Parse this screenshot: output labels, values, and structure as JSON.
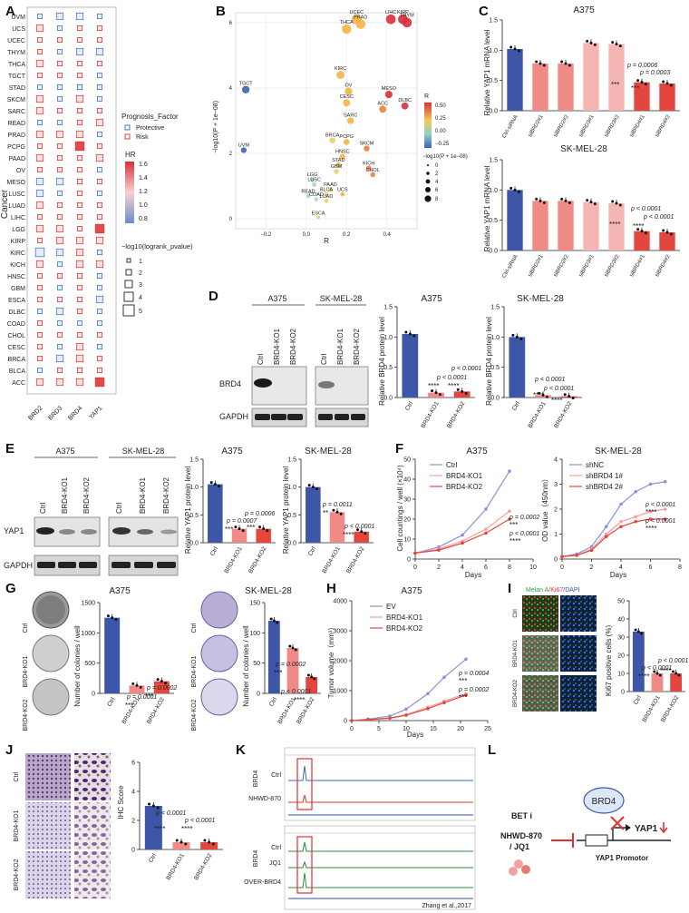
{
  "panels": {
    "A": {
      "label": "A"
    },
    "B": {
      "label": "B"
    },
    "C": {
      "label": "C"
    },
    "D": {
      "label": "D"
    },
    "E": {
      "label": "E"
    },
    "F": {
      "label": "F"
    },
    "G": {
      "label": "G"
    },
    "H": {
      "label": "H"
    },
    "I": {
      "label": "I"
    },
    "J": {
      "label": "J"
    },
    "K": {
      "label": "K"
    },
    "L": {
      "label": "L"
    }
  },
  "panelA": {
    "ylabel": "Cancer",
    "genes": [
      "BRD2",
      "BRD3",
      "BRD4",
      "YAP1"
    ],
    "cancers": [
      "UVM",
      "UCS",
      "UCEC",
      "THYM",
      "THCA",
      "TGCT",
      "STAD",
      "SKCM",
      "SARC",
      "READ",
      "PRAD",
      "PCPG",
      "PAAD",
      "OV",
      "MESO",
      "LUSC",
      "LUAD",
      "LIHC",
      "LGG",
      "KIRP",
      "KIRC",
      "KICH",
      "HNSC",
      "GBM",
      "ESCA",
      "DLBC",
      "COAD",
      "CHOL",
      "CESC",
      "BRCA",
      "BLCA",
      "ACC"
    ],
    "legend_factor_title": "Prognosis_Factor",
    "legend_factor_items": [
      "Protective",
      "Risk"
    ],
    "legend_hr_title": "HR",
    "legend_hr_ticks": [
      "1.6",
      "1.4",
      "1.2",
      "1.0",
      "0.8"
    ],
    "legend_size_title": "−log10(logrank_pvalue)",
    "legend_size_items": [
      "1",
      "2",
      "3",
      "4",
      "5"
    ]
  },
  "panelB": {
    "xlabel": "R",
    "ylabel": "−log10(P + 1e−08)",
    "xticks": [
      "−0.2",
      "0.0",
      "0.2",
      "0.4"
    ],
    "yticks": [
      "0",
      "2",
      "4",
      "6"
    ],
    "legend_r_title": "R",
    "legend_r_ticks": [
      "0.50",
      "0.25",
      "0.00",
      "−0.25"
    ],
    "legend_size_title": "−log10(P + 1e−08)",
    "legend_size_items": [
      "0",
      "2",
      "4",
      "6",
      "8"
    ],
    "points": [
      {
        "n": "UCEC",
        "x": 0.25,
        "y": 6.1
      },
      {
        "n": "PRAD",
        "x": 0.27,
        "y": 5.95
      },
      {
        "n": "THCA",
        "x": 0.2,
        "y": 5.8
      },
      {
        "n": "LIHC",
        "x": 0.42,
        "y": 6.1
      },
      {
        "n": "KIRP",
        "x": 0.48,
        "y": 6.1
      },
      {
        "n": "THYM",
        "x": 0.5,
        "y": 6.0
      },
      {
        "n": "TGCT",
        "x": -0.3,
        "y": 3.95
      },
      {
        "n": "KIRC",
        "x": 0.17,
        "y": 4.4
      },
      {
        "n": "OV",
        "x": 0.21,
        "y": 3.9
      },
      {
        "n": "MESO",
        "x": 0.41,
        "y": 3.8
      },
      {
        "n": "CESC",
        "x": 0.2,
        "y": 3.55
      },
      {
        "n": "ACC",
        "x": 0.38,
        "y": 3.35
      },
      {
        "n": "DLBC",
        "x": 0.49,
        "y": 3.45
      },
      {
        "n": "SARC",
        "x": 0.22,
        "y": 3.0
      },
      {
        "n": "BRCA",
        "x": 0.13,
        "y": 2.4
      },
      {
        "n": "PCPG",
        "x": 0.2,
        "y": 2.35
      },
      {
        "n": "UVM",
        "x": -0.31,
        "y": 2.1
      },
      {
        "n": "SKCM",
        "x": 0.3,
        "y": 2.15
      },
      {
        "n": "HNSC",
        "x": 0.18,
        "y": 1.9
      },
      {
        "n": "STAD",
        "x": 0.16,
        "y": 1.65
      },
      {
        "n": "KICH",
        "x": 0.31,
        "y": 1.55
      },
      {
        "n": "GBM",
        "x": 0.15,
        "y": 1.45
      },
      {
        "n": "CHOL",
        "x": 0.33,
        "y": 1.35
      },
      {
        "n": "LGG",
        "x": 0.03,
        "y": 1.2
      },
      {
        "n": "LUSC",
        "x": 0.04,
        "y": 1.05
      },
      {
        "n": "PAAD",
        "x": 0.12,
        "y": 0.9
      },
      {
        "n": "UCS",
        "x": 0.18,
        "y": 0.75
      },
      {
        "n": "BLCA",
        "x": 0.1,
        "y": 0.75
      },
      {
        "n": "READ",
        "x": 0.01,
        "y": 0.7
      },
      {
        "n": "COAD",
        "x": 0.05,
        "y": 0.6
      },
      {
        "n": "LUAD",
        "x": 0.1,
        "y": 0.55
      },
      {
        "n": "ESCA",
        "x": 0.06,
        "y": 0.05
      }
    ]
  },
  "panelC": {
    "title_a": "A375",
    "title_b": "SK-MEL-28",
    "ylabel": "Relative YAP1 mRNA level",
    "categories": [
      "Ctrl-siRNA",
      "siBRD2#1",
      "siBRD2#2",
      "siBRD3#1",
      "siBRD3#2",
      "siBRD4#1",
      "siBRD4#2"
    ],
    "yticks": [
      "0.0",
      "0.5",
      "1.0",
      "1.5"
    ],
    "a_values": [
      1.02,
      0.78,
      0.78,
      1.12,
      1.1,
      0.47,
      0.45
    ],
    "b_values": [
      1.0,
      0.82,
      0.82,
      0.8,
      0.78,
      0.32,
      0.3
    ],
    "a_p1": "p = 0.0006",
    "a_p2": "p = 0.0003",
    "b_p1": "p < 0.0001",
    "b_p2": "p < 0.0001",
    "stars_a": "***",
    "stars_b": "****"
  },
  "panelD": {
    "cell1": "A375",
    "cell2": "SK-MEL-28",
    "lanes": [
      "Ctrl",
      "BRD4-KO1",
      "BRD4-KO2"
    ],
    "row1": "BRD4",
    "row2": "GAPDH",
    "chart_title1": "A375",
    "chart_title2": "SK-MEL-28",
    "ylabel": "Relative BRD4 protein level",
    "yticks": [
      "0.0",
      "0.5",
      "1.0",
      "1.5"
    ],
    "values1": [
      1.05,
      0.08,
      0.1
    ],
    "values2": [
      1.0,
      0.04,
      0.02
    ],
    "p1a": "p < 0.0001",
    "p1b": "p < 0.0001",
    "p2a": "p < 0.0001",
    "p2b": "p < 0.0001",
    "stars": "****"
  },
  "panelE": {
    "cell1": "A375",
    "cell2": "SK-MEL-28",
    "lanes": [
      "Ctrl",
      "BRD4-KO1",
      "BRD4-KO2"
    ],
    "row1": "YAP1",
    "row2": "GAPDH",
    "chart_title1": "A375",
    "chart_title2": "SK-MEL-28",
    "ylabel": "Relative YAP1 protein level",
    "yticks": [
      "0.0",
      "0.5",
      "1.0",
      "1.5"
    ],
    "values1": [
      1.05,
      0.25,
      0.25
    ],
    "values2": [
      1.0,
      0.55,
      0.2
    ],
    "p1a": "p = 0.0007",
    "p1b": "p = 0.0006",
    "p2a": "p = 0.0011",
    "p2b": "p < 0.0001",
    "stars1": "***",
    "stars2a": "**",
    "stars2b": "****"
  },
  "panelF": {
    "title1": "A375",
    "title2": "SK-MEL-28",
    "ylabel1": "Cell countings / well (×10⁴)",
    "ylabel2": "OD value（450nm）",
    "xlabel": "Days",
    "xticks1": [
      "0",
      "2",
      "4",
      "6",
      "8",
      "10"
    ],
    "yticks1": [
      "0",
      "10",
      "20",
      "30",
      "40",
      "50"
    ],
    "xticks2": [
      "0",
      "2",
      "4",
      "6",
      "8"
    ],
    "yticks2": [
      "0",
      "1",
      "2",
      "3",
      "4"
    ],
    "legend1": [
      "Ctrl",
      "BRD4-KO1",
      "BRD4-KO2"
    ],
    "legend2": [
      "shNC",
      "shBRD4 1#",
      "shBRD4 2#"
    ],
    "series1": [
      {
        "name": "Ctrl",
        "x": [
          0,
          2,
          4,
          6,
          8
        ],
        "y": [
          3,
          6,
          12,
          25,
          44
        ]
      },
      {
        "name": "BRD4-KO1",
        "x": [
          0,
          2,
          4,
          6,
          8
        ],
        "y": [
          3,
          5,
          9,
          15,
          24
        ]
      },
      {
        "name": "BRD4-KO2",
        "x": [
          0,
          2,
          4,
          6,
          8
        ],
        "y": [
          3,
          4.5,
          8,
          13,
          20
        ]
      }
    ],
    "series2": [
      {
        "name": "shNC",
        "x": [
          0,
          1,
          2,
          3,
          4,
          5,
          6,
          7
        ],
        "y": [
          0.1,
          0.2,
          0.5,
          1.3,
          2.2,
          2.7,
          3.0,
          3.1
        ]
      },
      {
        "name": "shBRD4 1#",
        "x": [
          0,
          1,
          2,
          3,
          4,
          5,
          6,
          7
        ],
        "y": [
          0.1,
          0.15,
          0.4,
          1.0,
          1.5,
          1.7,
          1.9,
          2.0
        ]
      },
      {
        "name": "shBRD4 2#",
        "x": [
          0,
          1,
          2,
          3,
          4,
          5,
          6,
          7
        ],
        "y": [
          0.1,
          0.15,
          0.35,
          0.9,
          1.3,
          1.5,
          1.6,
          1.6
        ]
      }
    ],
    "p1a": "p = 0.0002",
    "p1b": "p < 0.0001",
    "s1a": "***",
    "s1b": "****",
    "p2a": "p < 0.0001",
    "p2b": "p < 0.0001",
    "s2a": "****",
    "s2b": "****"
  },
  "panelG": {
    "title1": "A375",
    "title2": "SK-MEL-28",
    "rows": [
      "Ctrl",
      "BRD4-KO1",
      "BRD4-KO2"
    ],
    "ylabel": "Number of colonies / well",
    "categories": [
      "Ctrl",
      "BRD4-KO1",
      "BRD4-KO2"
    ],
    "yticks1": [
      "0",
      "500",
      "1000",
      "1500"
    ],
    "yticks2": [
      "0",
      "50",
      "100",
      "150"
    ],
    "values1": [
      1250,
      130,
      200
    ],
    "values2": [
      120,
      75,
      27
    ],
    "p1a": "p = 0.0001",
    "p1b": "p = 0.0002",
    "s1a": "***",
    "s1b": "***",
    "p2a": "p = 0.0002",
    "p2b": "p < 0.0001",
    "s2a": "***",
    "s2b": "****"
  },
  "panelH": {
    "title": "A375",
    "ylabel": "Tumor volume（mm³）",
    "xlabel": "Days",
    "xticks": [
      "0",
      "5",
      "10",
      "15",
      "20",
      "25"
    ],
    "yticks": [
      "0",
      "1000",
      "2000",
      "3000",
      "4000"
    ],
    "legend": [
      "EV",
      "BRD4-KO1",
      "BRD4-KO2"
    ],
    "series": [
      {
        "name": "EV",
        "x": [
          0,
          3,
          7,
          10,
          14,
          17,
          21
        ],
        "y": [
          0,
          50,
          150,
          380,
          900,
          1450,
          2050
        ]
      },
      {
        "name": "BRD4-KO1",
        "x": [
          0,
          3,
          7,
          10,
          14,
          17,
          21
        ],
        "y": [
          0,
          30,
          90,
          200,
          450,
          650,
          900
        ]
      },
      {
        "name": "BRD4-KO2",
        "x": [
          0,
          3,
          7,
          10,
          14,
          17,
          21
        ],
        "y": [
          0,
          30,
          80,
          180,
          400,
          600,
          850
        ]
      }
    ],
    "p_a": "p = 0.0004",
    "p_b": "p = 0.0002",
    "s_a": "***",
    "s_b": "***"
  },
  "panelI": {
    "stain_label": "Melan A/Ki67/DAPI",
    "stain_parts": [
      "Melan A",
      "/Ki67",
      "/DAPI"
    ],
    "rows": [
      "Ctrl",
      "BRD4-KO1",
      "BRD4-KO2"
    ],
    "ylabel": "Ki67 positive cells (%)",
    "categories": [
      "Ctrl",
      "BRD4-KO1",
      "BRD4-KO2"
    ],
    "yticks": [
      "0",
      "10",
      "20",
      "30",
      "40",
      "50"
    ],
    "values": [
      33,
      10,
      10
    ],
    "p_a": "p < 0.0001",
    "p_b": "p < 0.0001",
    "stars": "****"
  },
  "panelJ": {
    "rows": [
      "Ctrl",
      "BRD4-KO1",
      "BRD4-KO2"
    ],
    "ylabel": "IHC Score",
    "categories": [
      "Ctrl",
      "BRD4-KO1",
      "BRD4-KO2"
    ],
    "yticks": [
      "0",
      "2",
      "4",
      "6"
    ],
    "values": [
      3.0,
      0.5,
      0.5
    ],
    "p_a": "p < 0.0001",
    "p_b": "p < 0.0001",
    "stars": "****"
  },
  "panelK": {
    "side1": "BRD4",
    "side2": "BRD4",
    "tracks1": [
      "Ctrl",
      "NHWD-870"
    ],
    "tracks2": [
      "Ctrl",
      "JQ1",
      "OVER-BRD4"
    ],
    "citation": "Zhang et al.,2017"
  },
  "panelL": {
    "brd4": "BRD4",
    "beti": "BET i",
    "drug1": "NHWD-870",
    "drug2": "/ JQ1",
    "yap1": "YAP1",
    "promoter": "YAP1 Promotor"
  },
  "colors": {
    "blue": "#3d56a8",
    "pink": "#f08a86",
    "red": "#e3463e",
    "lightpink": "#f5b6b3",
    "protective": "#4a78c8",
    "risk": "#d94040"
  }
}
